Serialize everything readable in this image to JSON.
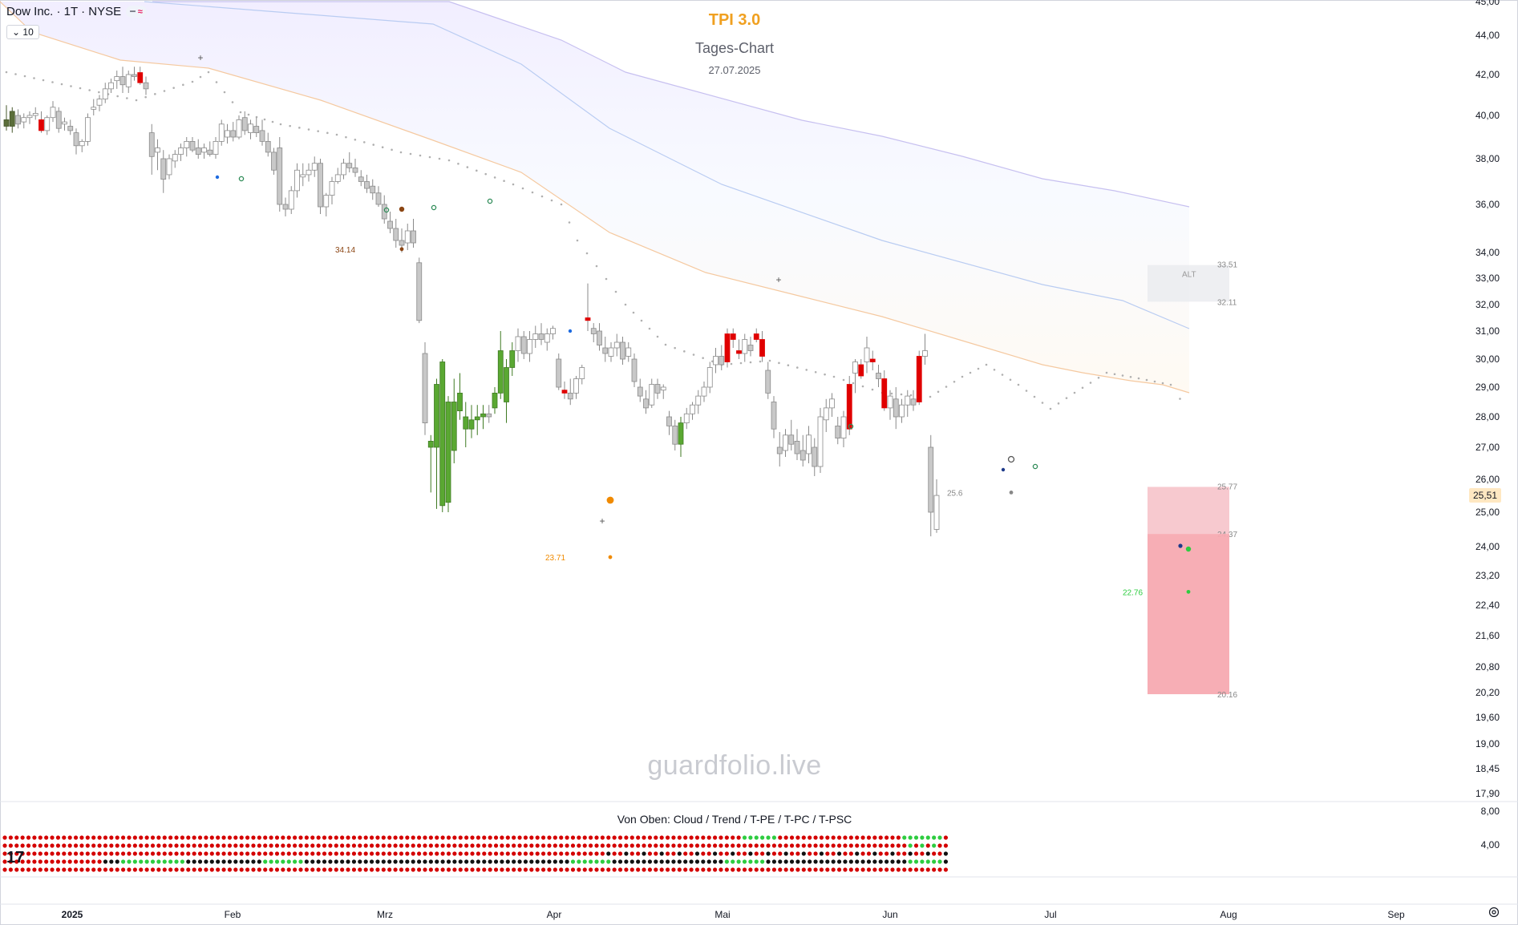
{
  "legend": {
    "symbol": "Dow Inc. · 1T · NYSE",
    "badge_a": "━",
    "badge_b": "≈",
    "collapse": "10"
  },
  "header": {
    "indicator": "TPI 3.0",
    "subtitle": "Tages-Chart",
    "date": "27.07.2025"
  },
  "watermark": "guardfolio.live",
  "indicator_label": "Von Oben: Cloud / Trend / T-PE / T-PC / T-PSC",
  "price_label": "25,51",
  "colors": {
    "up": "#ffffff",
    "down": "#e00000",
    "bull": "#5aa832",
    "neutral": "#d4d4d4",
    "accent": "#f0a020"
  },
  "chart_data": {
    "type": "candlestick",
    "price_axis": [
      "45,00",
      "44,00",
      "42,00",
      "40,00",
      "38,00",
      "36,00",
      "34,00",
      "33,00",
      "32,00",
      "31,00",
      "30,00",
      "29,00",
      "28,00",
      "27,00",
      "26,00",
      "25,00",
      "24,00",
      "23,20",
      "22,40",
      "21,60",
      "20,80",
      "20,20",
      "19,60",
      "19,00",
      "18,45",
      "17,90"
    ],
    "indicator_axis": [
      "8,00",
      "4,00"
    ],
    "time_axis": [
      "2025",
      "Feb",
      "Mrz",
      "Apr",
      "Mai",
      "Jun",
      "Jul",
      "Aug",
      "Sep"
    ],
    "levels": [
      {
        "label": "34.14",
        "value": 34.14
      },
      {
        "label": "23.71",
        "value": 23.71
      },
      {
        "label": "25.6",
        "value": 25.6
      },
      {
        "label": "22.76",
        "value": 22.76
      }
    ],
    "zones": [
      {
        "name": "ALT",
        "top": 33.51,
        "bottom": 32.11,
        "top_label": "33.51",
        "bottom_label": "32.11"
      },
      {
        "name": "",
        "top": 25.77,
        "bottom": 24.37,
        "top_label": "25.77",
        "bottom_label": "24.37"
      },
      {
        "name": "",
        "top": 24.37,
        "bottom": 20.16,
        "top_label": "",
        "bottom_label": "20.16"
      }
    ],
    "candles": [
      [
        0,
        39.8,
        40.5,
        39.3,
        39.5,
        "bull"
      ],
      [
        1,
        39.5,
        40.4,
        39.2,
        40.2,
        "bull"
      ],
      [
        2,
        40.0,
        40.3,
        39.4,
        39.6,
        "neutral"
      ],
      [
        3,
        39.7,
        40.1,
        39.4,
        39.9,
        "up"
      ],
      [
        4,
        39.9,
        40.2,
        39.6,
        40.0,
        "up"
      ],
      [
        5,
        40.0,
        40.4,
        39.8,
        40.1,
        "up"
      ],
      [
        6,
        39.8,
        40.2,
        39.2,
        39.3,
        "down"
      ],
      [
        7,
        39.3,
        40.0,
        39.1,
        39.9,
        "up"
      ],
      [
        8,
        39.9,
        40.7,
        39.7,
        40.4,
        "up"
      ],
      [
        9,
        40.2,
        40.4,
        39.2,
        39.4,
        "neutral"
      ],
      [
        10,
        39.6,
        39.9,
        39.3,
        39.7,
        "up"
      ],
      [
        11,
        39.5,
        39.8,
        39.1,
        39.3,
        "neutral"
      ],
      [
        12,
        39.2,
        39.4,
        38.2,
        38.6,
        "neutral"
      ],
      [
        13,
        38.6,
        38.9,
        38.3,
        38.8,
        "up"
      ],
      [
        14,
        38.8,
        40.1,
        38.6,
        39.9,
        "up"
      ],
      [
        15,
        40.3,
        40.8,
        40.0,
        40.4,
        "up"
      ],
      [
        16,
        40.5,
        41.0,
        40.2,
        40.8,
        "up"
      ],
      [
        17,
        40.8,
        41.6,
        40.6,
        41.3,
        "up"
      ],
      [
        18,
        41.3,
        41.8,
        41.1,
        41.6,
        "up"
      ],
      [
        19,
        41.7,
        42.2,
        41.3,
        41.9,
        "up"
      ],
      [
        20,
        41.9,
        42.4,
        41.1,
        41.5,
        "neutral"
      ],
      [
        21,
        41.4,
        42.2,
        41.1,
        42.0,
        "up"
      ],
      [
        22,
        42.0,
        42.4,
        41.7,
        41.9,
        "neutral"
      ],
      [
        23,
        42.1,
        42.4,
        41.5,
        41.6,
        "down"
      ],
      [
        24,
        41.6,
        41.9,
        41.0,
        41.3,
        "neutral"
      ],
      [
        25,
        39.2,
        39.6,
        37.3,
        38.1,
        "neutral"
      ],
      [
        26,
        38.3,
        38.9,
        37.5,
        38.5,
        "up"
      ],
      [
        27,
        38.0,
        38.4,
        36.5,
        37.1,
        "neutral"
      ],
      [
        28,
        37.3,
        38.2,
        37.1,
        38.0,
        "up"
      ],
      [
        29,
        37.9,
        38.4,
        37.6,
        38.2,
        "up"
      ],
      [
        30,
        38.2,
        38.7,
        37.9,
        38.5,
        "up"
      ],
      [
        31,
        38.5,
        39.0,
        38.1,
        38.8,
        "up"
      ],
      [
        32,
        38.8,
        39.0,
        38.3,
        38.4,
        "neutral"
      ],
      [
        33,
        38.5,
        38.9,
        38.0,
        38.2,
        "neutral"
      ],
      [
        34,
        38.3,
        38.7,
        38.0,
        38.5,
        "up"
      ],
      [
        35,
        38.4,
        38.8,
        38.1,
        38.2,
        "neutral"
      ],
      [
        36,
        38.2,
        39.0,
        38.0,
        38.8,
        "up"
      ],
      [
        37,
        38.8,
        39.8,
        38.6,
        39.6,
        "up"
      ],
      [
        38,
        39.0,
        39.6,
        38.7,
        39.3,
        "up"
      ],
      [
        39,
        39.3,
        39.7,
        38.8,
        39.0,
        "neutral"
      ],
      [
        40,
        39.0,
        40.0,
        38.9,
        39.8,
        "up"
      ],
      [
        41,
        39.9,
        40.2,
        39.1,
        39.3,
        "neutral"
      ],
      [
        42,
        39.2,
        39.8,
        38.9,
        39.6,
        "up"
      ],
      [
        43,
        39.5,
        39.9,
        39.0,
        39.2,
        "neutral"
      ],
      [
        44,
        39.3,
        39.8,
        38.6,
        38.8,
        "neutral"
      ],
      [
        45,
        38.8,
        39.2,
        38.1,
        38.3,
        "neutral"
      ],
      [
        46,
        38.3,
        38.5,
        37.3,
        37.5,
        "neutral"
      ],
      [
        47,
        38.5,
        39.0,
        35.7,
        36.0,
        "neutral"
      ],
      [
        48,
        36.0,
        36.3,
        35.5,
        35.8,
        "neutral"
      ],
      [
        49,
        35.8,
        36.8,
        35.6,
        36.6,
        "up"
      ],
      [
        50,
        36.6,
        37.8,
        36.3,
        37.5,
        "up"
      ],
      [
        51,
        37.2,
        37.8,
        36.8,
        37.3,
        "up"
      ],
      [
        52,
        37.3,
        37.8,
        37.0,
        37.5,
        "up"
      ],
      [
        53,
        37.5,
        38.1,
        37.2,
        37.8,
        "up"
      ],
      [
        54,
        37.8,
        38.0,
        35.6,
        35.9,
        "neutral"
      ],
      [
        55,
        35.9,
        36.5,
        35.5,
        36.4,
        "up"
      ],
      [
        56,
        36.4,
        37.2,
        36.0,
        37.0,
        "up"
      ],
      [
        57,
        37.0,
        37.6,
        36.9,
        37.3,
        "up"
      ],
      [
        58,
        37.3,
        38.0,
        37.1,
        37.8,
        "up"
      ],
      [
        59,
        37.8,
        38.3,
        37.4,
        37.6,
        "neutral"
      ],
      [
        60,
        37.6,
        38.0,
        37.2,
        37.4,
        "neutral"
      ],
      [
        61,
        37.2,
        37.5,
        36.8,
        37.0,
        "neutral"
      ],
      [
        62,
        37.0,
        37.3,
        36.5,
        36.7,
        "neutral"
      ],
      [
        63,
        36.8,
        37.1,
        36.2,
        36.5,
        "neutral"
      ],
      [
        64,
        36.5,
        36.8,
        35.9,
        36.0,
        "neutral"
      ],
      [
        65,
        36.0,
        36.4,
        35.2,
        35.4,
        "neutral"
      ],
      [
        66,
        35.3,
        35.7,
        34.8,
        35.0,
        "neutral"
      ],
      [
        67,
        35.0,
        35.4,
        34.2,
        34.5,
        "neutral"
      ],
      [
        68,
        34.5,
        35.0,
        34.0,
        34.3,
        "neutral"
      ],
      [
        69,
        34.4,
        35.2,
        34.1,
        34.9,
        "up"
      ],
      [
        70,
        34.9,
        35.4,
        34.2,
        34.4,
        "neutral"
      ],
      [
        71,
        33.6,
        33.8,
        31.3,
        31.4,
        "neutral"
      ],
      [
        72,
        30.2,
        30.6,
        27.4,
        27.8,
        "neutral"
      ],
      [
        73,
        27.2,
        27.4,
        25.6,
        27.0,
        "bull"
      ],
      [
        74,
        27.0,
        29.3,
        25.1,
        29.1,
        "bull"
      ],
      [
        75,
        29.9,
        30.0,
        25.0,
        25.2,
        "bull"
      ],
      [
        76,
        25.3,
        28.7,
        25.0,
        28.5,
        "bull"
      ],
      [
        77,
        28.5,
        29.3,
        26.5,
        26.9,
        "bull"
      ],
      [
        78,
        28.8,
        29.5,
        27.9,
        28.2,
        "bull"
      ],
      [
        79,
        28.0,
        28.5,
        27.0,
        27.6,
        "bull"
      ],
      [
        80,
        27.6,
        28.4,
        27.3,
        27.9,
        "bull"
      ],
      [
        81,
        27.9,
        28.4,
        27.4,
        28.0,
        "bull"
      ],
      [
        82,
        28.0,
        28.4,
        27.6,
        28.1,
        "bull"
      ],
      [
        83,
        28.1,
        28.4,
        27.8,
        28.0,
        "neutral"
      ],
      [
        84,
        28.3,
        29.0,
        28.1,
        28.8,
        "bull"
      ],
      [
        85,
        28.8,
        31.0,
        28.6,
        30.3,
        "bull"
      ],
      [
        86,
        28.5,
        30.0,
        27.8,
        29.7,
        "bull"
      ],
      [
        87,
        29.7,
        30.6,
        29.4,
        30.3,
        "bull"
      ],
      [
        88,
        30.3,
        31.1,
        29.9,
        30.8,
        "up"
      ],
      [
        89,
        30.8,
        31.0,
        30.0,
        30.2,
        "neutral"
      ],
      [
        90,
        30.2,
        31.0,
        29.9,
        30.7,
        "up"
      ],
      [
        91,
        30.7,
        31.2,
        30.4,
        30.9,
        "up"
      ],
      [
        92,
        30.9,
        31.3,
        30.5,
        30.7,
        "neutral"
      ],
      [
        93,
        30.6,
        31.1,
        30.3,
        30.9,
        "up"
      ],
      [
        94,
        30.9,
        31.2,
        30.7,
        31.1,
        "up"
      ],
      [
        95,
        30.0,
        30.2,
        28.9,
        29.0,
        "neutral"
      ],
      [
        96,
        28.9,
        29.2,
        28.6,
        28.8,
        "down"
      ],
      [
        97,
        28.8,
        29.3,
        28.4,
        28.6,
        "neutral"
      ],
      [
        98,
        28.8,
        29.4,
        28.6,
        29.3,
        "up"
      ],
      [
        99,
        29.3,
        29.8,
        29.1,
        29.7,
        "up"
      ],
      [
        100,
        31.5,
        32.8,
        31.0,
        31.4,
        "down"
      ],
      [
        101,
        30.9,
        31.3,
        30.6,
        31.1,
        "neutral"
      ],
      [
        102,
        31.0,
        31.3,
        30.3,
        30.5,
        "neutral"
      ],
      [
        103,
        30.4,
        30.8,
        29.9,
        30.2,
        "neutral"
      ],
      [
        104,
        30.1,
        30.6,
        29.9,
        30.4,
        "up"
      ],
      [
        105,
        30.4,
        30.9,
        30.1,
        30.6,
        "up"
      ],
      [
        106,
        30.6,
        30.8,
        29.8,
        30.0,
        "neutral"
      ],
      [
        107,
        30.1,
        30.6,
        29.9,
        30.4,
        "up"
      ],
      [
        108,
        30.0,
        30.2,
        29.0,
        29.2,
        "neutral"
      ],
      [
        109,
        29.0,
        29.3,
        28.5,
        28.7,
        "neutral"
      ],
      [
        110,
        28.6,
        28.9,
        28.1,
        28.3,
        "neutral"
      ],
      [
        111,
        28.4,
        29.3,
        28.3,
        29.1,
        "up"
      ],
      [
        112,
        29.1,
        29.3,
        28.6,
        28.8,
        "neutral"
      ],
      [
        113,
        28.9,
        29.1,
        28.6,
        29.0,
        "up"
      ],
      [
        114,
        28.0,
        28.2,
        27.4,
        27.7,
        "neutral"
      ],
      [
        115,
        27.7,
        27.9,
        26.9,
        27.1,
        "neutral"
      ],
      [
        116,
        27.1,
        28.0,
        26.7,
        27.8,
        "bull"
      ],
      [
        117,
        27.8,
        28.3,
        27.6,
        28.1,
        "up"
      ],
      [
        118,
        28.1,
        28.5,
        27.9,
        28.4,
        "up"
      ],
      [
        119,
        28.4,
        28.9,
        28.1,
        28.7,
        "up"
      ],
      [
        120,
        28.7,
        29.2,
        28.5,
        29.0,
        "up"
      ],
      [
        121,
        29.0,
        29.9,
        28.8,
        29.7,
        "up"
      ],
      [
        122,
        29.8,
        30.4,
        29.5,
        30.1,
        "up"
      ],
      [
        123,
        30.1,
        30.5,
        29.6,
        29.8,
        "neutral"
      ],
      [
        124,
        30.9,
        31.1,
        29.7,
        29.9,
        "down"
      ],
      [
        125,
        30.7,
        31.1,
        30.4,
        30.9,
        "down"
      ],
      [
        126,
        30.3,
        30.7,
        30.0,
        30.2,
        "down"
      ],
      [
        127,
        30.2,
        30.9,
        29.9,
        30.7,
        "up"
      ],
      [
        128,
        30.5,
        30.8,
        30.1,
        30.3,
        "neutral"
      ],
      [
        129,
        30.9,
        31.1,
        30.6,
        30.7,
        "down"
      ],
      [
        130,
        30.7,
        31.0,
        29.9,
        30.1,
        "down"
      ],
      [
        131,
        29.6,
        29.9,
        28.6,
        28.8,
        "neutral"
      ],
      [
        132,
        28.5,
        28.7,
        27.3,
        27.6,
        "neutral"
      ],
      [
        133,
        27.0,
        27.5,
        26.4,
        26.8,
        "neutral"
      ],
      [
        134,
        26.9,
        27.6,
        26.7,
        27.4,
        "up"
      ],
      [
        135,
        27.4,
        27.9,
        26.9,
        27.1,
        "neutral"
      ],
      [
        136,
        27.2,
        27.6,
        26.6,
        26.8,
        "neutral"
      ],
      [
        137,
        26.9,
        27.4,
        26.4,
        26.6,
        "neutral"
      ],
      [
        138,
        26.8,
        27.7,
        26.5,
        27.4,
        "up"
      ],
      [
        139,
        27.0,
        27.3,
        26.1,
        26.4,
        "neutral"
      ],
      [
        140,
        26.4,
        28.3,
        26.2,
        28.0,
        "up"
      ],
      [
        141,
        27.9,
        28.6,
        27.5,
        28.3,
        "up"
      ],
      [
        142,
        28.3,
        28.8,
        28.0,
        28.6,
        "up"
      ],
      [
        143,
        27.7,
        28.0,
        27.1,
        27.3,
        "neutral"
      ],
      [
        144,
        27.3,
        28.2,
        27.0,
        28.0,
        "up"
      ],
      [
        145,
        29.1,
        29.4,
        27.4,
        27.6,
        "down"
      ],
      [
        146,
        29.5,
        30.0,
        28.8,
        29.9,
        "up"
      ],
      [
        147,
        29.8,
        30.0,
        29.3,
        29.4,
        "down"
      ],
      [
        148,
        29.9,
        30.8,
        29.5,
        30.4,
        "up"
      ],
      [
        149,
        30.0,
        30.3,
        29.6,
        29.9,
        "down"
      ],
      [
        150,
        29.5,
        29.8,
        29.0,
        29.3,
        "neutral"
      ],
      [
        151,
        29.3,
        29.6,
        28.2,
        28.3,
        "down"
      ],
      [
        152,
        28.3,
        28.9,
        27.9,
        28.7,
        "up"
      ],
      [
        153,
        28.6,
        29.0,
        27.6,
        28.0,
        "neutral"
      ],
      [
        154,
        28.0,
        28.6,
        27.8,
        28.4,
        "up"
      ],
      [
        155,
        28.4,
        28.9,
        28.0,
        28.7,
        "up"
      ],
      [
        156,
        28.6,
        28.9,
        28.2,
        28.4,
        "neutral"
      ],
      [
        157,
        30.1,
        30.3,
        28.4,
        28.5,
        "down"
      ],
      [
        158,
        30.1,
        30.9,
        29.8,
        30.3,
        "up"
      ],
      [
        159,
        27.0,
        27.4,
        24.3,
        25.0,
        "neutral"
      ],
      [
        160,
        24.5,
        26.0,
        24.4,
        25.51,
        "up"
      ]
    ]
  }
}
